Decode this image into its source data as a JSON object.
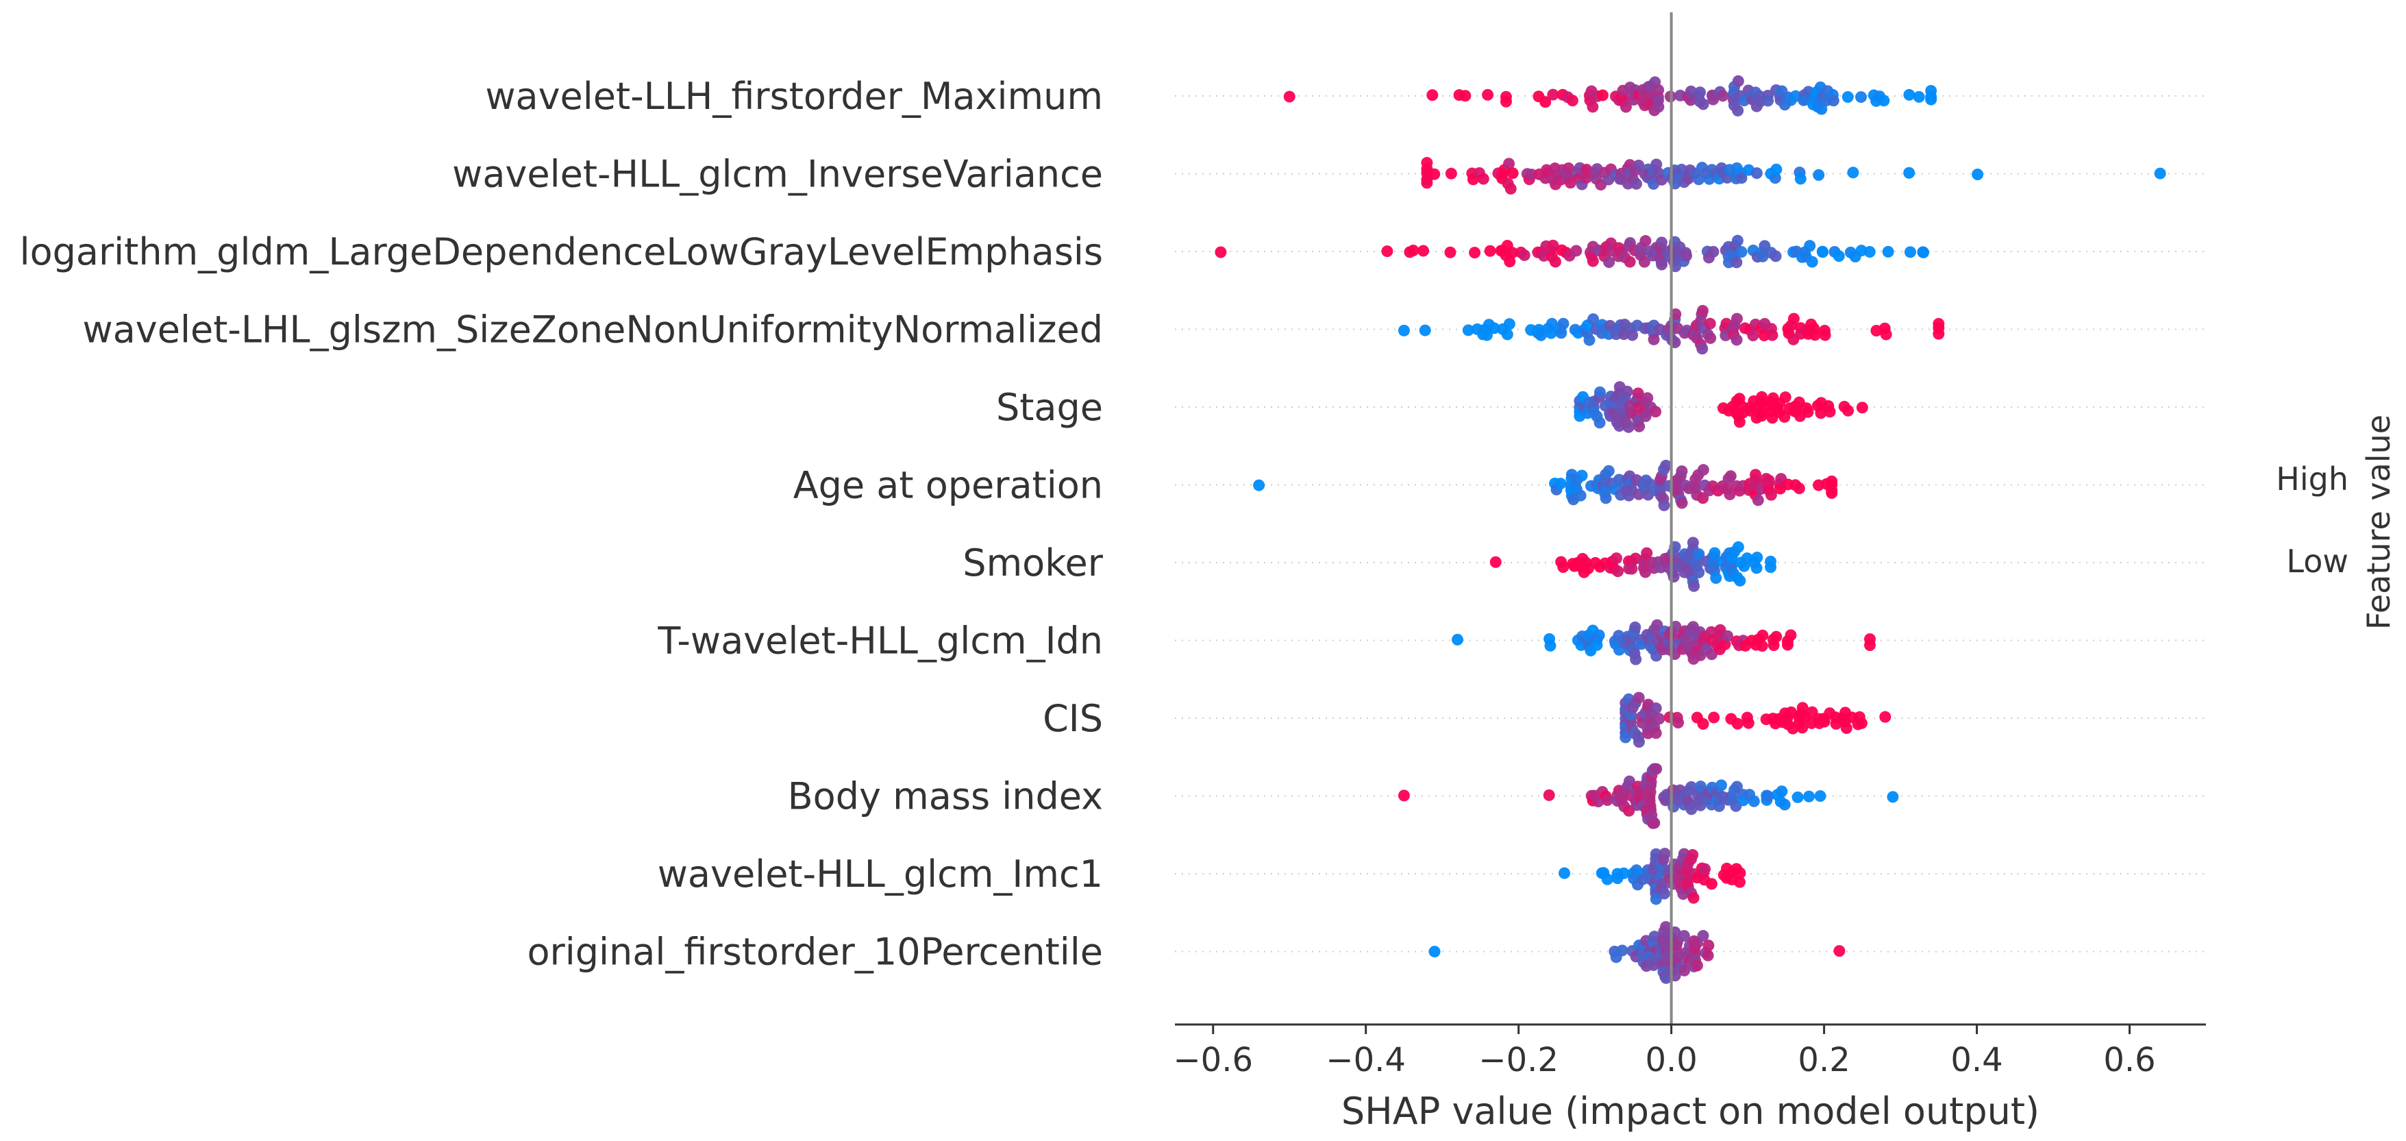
{
  "chart_data": {
    "type": "scatter",
    "subtype": "shap-beeswarm-summary",
    "title": "",
    "xlabel": "SHAP value (impact on model output)",
    "xlim": [
      -0.65,
      0.7
    ],
    "xticks": [
      -0.6,
      -0.4,
      -0.2,
      0.0,
      0.2,
      0.4,
      0.6
    ],
    "xtick_labels": [
      "−0.6",
      "−0.4",
      "−0.2",
      "0.0",
      "0.2",
      "0.4",
      "0.6"
    ],
    "grid": false,
    "zero_line": true,
    "colorbar": {
      "title": "Feature value",
      "high_label": "High",
      "low_label": "Low",
      "low_color": "#008bfb",
      "high_color": "#ff0051",
      "placement": "right"
    },
    "features": [
      {
        "name": "wavelet-LLH_firstorder_Maximum",
        "min": -0.5,
        "max": 0.34,
        "center": 0.05,
        "spread": 0.15,
        "dir": -1,
        "count": 110
      },
      {
        "name": "wavelet-HLL_glcm_InverseVariance",
        "min": -0.32,
        "max": 0.64,
        "center": -0.05,
        "spread": 0.14,
        "dir": -1,
        "count": 110
      },
      {
        "name": "logarithm_gldm_LargeDependenceLowGrayLevelEmphasis",
        "min": -0.59,
        "max": 0.33,
        "center": 0.0,
        "spread": 0.15,
        "dir": -1,
        "count": 110
      },
      {
        "name": "wavelet-LHL_glszm_SizeZoneNonUniformityNormalized",
        "min": -0.35,
        "max": 0.35,
        "center": 0.0,
        "spread": 0.15,
        "dir": 1,
        "count": 110
      },
      {
        "name": "Stage",
        "min": -0.12,
        "max": 0.25,
        "center": -0.06,
        "spread": 0.03,
        "dir": 1,
        "count": 95,
        "bimodal": [
          -0.06,
          0.14
        ]
      },
      {
        "name": "Age at operation",
        "min": -0.54,
        "max": 0.21,
        "center": 0.0,
        "spread": 0.1,
        "dir": 1,
        "count": 110
      },
      {
        "name": "Smoker",
        "min": -0.23,
        "max": 0.13,
        "center": 0.0,
        "spread": 0.05,
        "dir": -1,
        "count": 90,
        "bimodal": [
          -0.05,
          0.07
        ]
      },
      {
        "name": "T-wavelet-HLL_glcm_Idn",
        "min": -0.28,
        "max": 0.26,
        "center": 0.0,
        "spread": 0.07,
        "dir": 1,
        "count": 100
      },
      {
        "name": "CIS",
        "min": -0.06,
        "max": 0.28,
        "center": -0.04,
        "spread": 0.02,
        "dir": 1,
        "count": 75,
        "bimodal": [
          -0.04,
          0.15
        ]
      },
      {
        "name": "Body mass index",
        "min": -0.35,
        "max": 0.29,
        "center": 0.0,
        "spread": 0.07,
        "dir": -1,
        "count": 100
      },
      {
        "name": "wavelet-HLL_glcm_Imc1",
        "min": -0.14,
        "max": 0.09,
        "center": 0.0,
        "spread": 0.04,
        "dir": 1,
        "count": 70
      },
      {
        "name": "original_firstorder_10Percentile",
        "min": -0.31,
        "max": 0.22,
        "center": 0.0,
        "spread": 0.03,
        "dir": 1,
        "count": 65
      }
    ]
  }
}
